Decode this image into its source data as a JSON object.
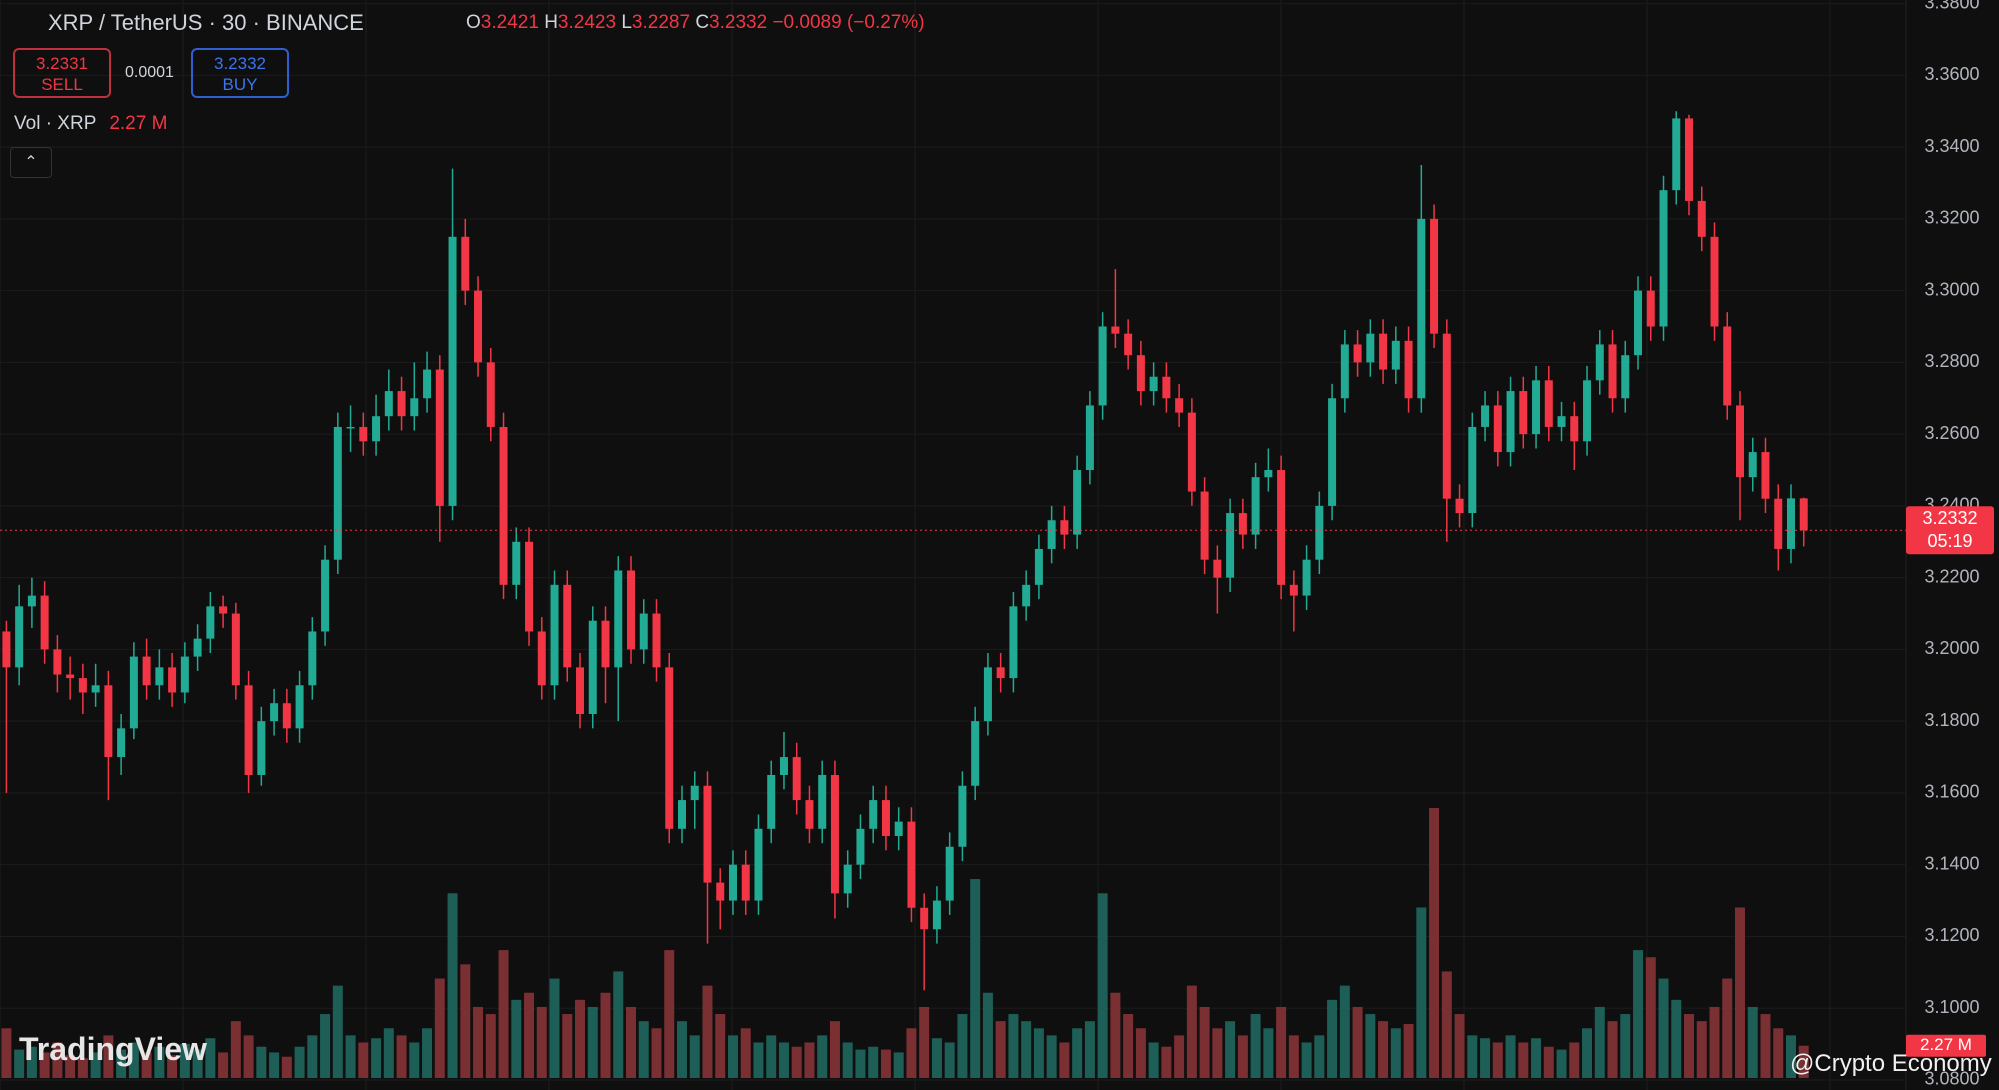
{
  "chart_data": {
    "type": "candlestick",
    "symbol": "XRP / TetherUS · 30 · BINANCE",
    "ohlc_labels": [
      "O",
      "H",
      "L",
      "C"
    ],
    "change": {
      "value": -0.0089,
      "label": "−0.0089"
    },
    "change_pct": {
      "value": -0.27,
      "label": "(−0.27%)"
    },
    "bid": 3.2331,
    "ask": 3.2332,
    "spread": 0.0001,
    "sell_label": "SELL",
    "buy_label": "BUY",
    "volume_title": "Vol · XRP",
    "last_volume_label": "2.27 M",
    "countdown": "05:19",
    "watermark": "TradingView",
    "credit": "@Crypto Economy",
    "up_color": "#22ab94",
    "down_color": "#f23645",
    "volume_up_color": "#1d5e57",
    "volume_down_color": "#7a2f33",
    "grid": true,
    "ylim": [
      3.0772,
      3.381
    ],
    "yticks": [
      {
        "value": 3.08,
        "label": "3.0800"
      },
      {
        "value": 3.1,
        "label": "3.1000"
      },
      {
        "value": 3.12,
        "label": "3.1200"
      },
      {
        "value": 3.14,
        "label": "3.1400"
      },
      {
        "value": 3.16,
        "label": "3.1600"
      },
      {
        "value": 3.18,
        "label": "3.1800"
      },
      {
        "value": 3.2,
        "label": "3.2000"
      },
      {
        "value": 3.22,
        "label": "3.2200"
      },
      {
        "value": 3.24,
        "label": "3.2400"
      },
      {
        "value": 3.26,
        "label": "3.2600"
      },
      {
        "value": 3.28,
        "label": "3.2800"
      },
      {
        "value": 3.3,
        "label": "3.3000"
      },
      {
        "value": 3.32,
        "label": "3.3200"
      },
      {
        "value": 3.34,
        "label": "3.3400"
      },
      {
        "value": 3.36,
        "label": "3.3600"
      },
      {
        "value": 3.38,
        "label": "3.3800"
      }
    ],
    "candles": [
      [
        3.205,
        3.208,
        3.16,
        3.195
      ],
      [
        3.195,
        3.218,
        3.19,
        3.212
      ],
      [
        3.212,
        3.22,
        3.206,
        3.215
      ],
      [
        3.215,
        3.219,
        3.196,
        3.2
      ],
      [
        3.2,
        3.204,
        3.188,
        3.193
      ],
      [
        3.193,
        3.198,
        3.186,
        3.192
      ],
      [
        3.192,
        3.196,
        3.182,
        3.188
      ],
      [
        3.188,
        3.196,
        3.184,
        3.19
      ],
      [
        3.19,
        3.194,
        3.158,
        3.17
      ],
      [
        3.17,
        3.182,
        3.165,
        3.178
      ],
      [
        3.178,
        3.202,
        3.175,
        3.198
      ],
      [
        3.198,
        3.203,
        3.186,
        3.19
      ],
      [
        3.19,
        3.2,
        3.186,
        3.195
      ],
      [
        3.195,
        3.199,
        3.184,
        3.188
      ],
      [
        3.188,
        3.202,
        3.185,
        3.198
      ],
      [
        3.198,
        3.207,
        3.194,
        3.203
      ],
      [
        3.203,
        3.216,
        3.199,
        3.212
      ],
      [
        3.212,
        3.215,
        3.206,
        3.21
      ],
      [
        3.21,
        3.213,
        3.186,
        3.19
      ],
      [
        3.19,
        3.194,
        3.16,
        3.165
      ],
      [
        3.165,
        3.184,
        3.162,
        3.18
      ],
      [
        3.18,
        3.189,
        3.176,
        3.185
      ],
      [
        3.185,
        3.189,
        3.174,
        3.178
      ],
      [
        3.178,
        3.194,
        3.174,
        3.19
      ],
      [
        3.19,
        3.209,
        3.186,
        3.205
      ],
      [
        3.205,
        3.229,
        3.201,
        3.225
      ],
      [
        3.225,
        3.266,
        3.221,
        3.262
      ],
      [
        3.262,
        3.268,
        3.255,
        3.262
      ],
      [
        3.262,
        3.266,
        3.254,
        3.258
      ],
      [
        3.258,
        3.271,
        3.254,
        3.265
      ],
      [
        3.265,
        3.278,
        3.261,
        3.272
      ],
      [
        3.272,
        3.276,
        3.261,
        3.265
      ],
      [
        3.265,
        3.28,
        3.261,
        3.27
      ],
      [
        3.27,
        3.283,
        3.266,
        3.278
      ],
      [
        3.278,
        3.282,
        3.23,
        3.24
      ],
      [
        3.24,
        3.334,
        3.236,
        3.315
      ],
      [
        3.315,
        3.32,
        3.296,
        3.3
      ],
      [
        3.3,
        3.304,
        3.276,
        3.28
      ],
      [
        3.28,
        3.284,
        3.258,
        3.262
      ],
      [
        3.262,
        3.266,
        3.214,
        3.218
      ],
      [
        3.218,
        3.234,
        3.214,
        3.23
      ],
      [
        3.23,
        3.234,
        3.201,
        3.205
      ],
      [
        3.205,
        3.209,
        3.186,
        3.19
      ],
      [
        3.19,
        3.222,
        3.186,
        3.218
      ],
      [
        3.218,
        3.222,
        3.191,
        3.195
      ],
      [
        3.195,
        3.199,
        3.178,
        3.182
      ],
      [
        3.182,
        3.212,
        3.178,
        3.208
      ],
      [
        3.208,
        3.212,
        3.185,
        3.195
      ],
      [
        3.195,
        3.226,
        3.18,
        3.222
      ],
      [
        3.222,
        3.226,
        3.196,
        3.2
      ],
      [
        3.2,
        3.214,
        3.196,
        3.21
      ],
      [
        3.21,
        3.214,
        3.191,
        3.195
      ],
      [
        3.195,
        3.199,
        3.146,
        3.15
      ],
      [
        3.15,
        3.162,
        3.146,
        3.158
      ],
      [
        3.158,
        3.166,
        3.15,
        3.162
      ],
      [
        3.162,
        3.166,
        3.118,
        3.135
      ],
      [
        3.135,
        3.139,
        3.122,
        3.13
      ],
      [
        3.13,
        3.144,
        3.126,
        3.14
      ],
      [
        3.14,
        3.144,
        3.126,
        3.13
      ],
      [
        3.13,
        3.154,
        3.126,
        3.15
      ],
      [
        3.15,
        3.169,
        3.146,
        3.165
      ],
      [
        3.165,
        3.177,
        3.161,
        3.17
      ],
      [
        3.17,
        3.174,
        3.154,
        3.158
      ],
      [
        3.158,
        3.162,
        3.146,
        3.15
      ],
      [
        3.15,
        3.169,
        3.146,
        3.165
      ],
      [
        3.165,
        3.169,
        3.125,
        3.132
      ],
      [
        3.132,
        3.144,
        3.128,
        3.14
      ],
      [
        3.14,
        3.154,
        3.136,
        3.15
      ],
      [
        3.15,
        3.162,
        3.146,
        3.158
      ],
      [
        3.158,
        3.162,
        3.144,
        3.148
      ],
      [
        3.148,
        3.156,
        3.144,
        3.152
      ],
      [
        3.152,
        3.156,
        3.124,
        3.128
      ],
      [
        3.128,
        3.132,
        3.105,
        3.122
      ],
      [
        3.122,
        3.134,
        3.118,
        3.13
      ],
      [
        3.13,
        3.149,
        3.126,
        3.145
      ],
      [
        3.145,
        3.166,
        3.141,
        3.162
      ],
      [
        3.162,
        3.184,
        3.158,
        3.18
      ],
      [
        3.18,
        3.199,
        3.176,
        3.195
      ],
      [
        3.195,
        3.199,
        3.188,
        3.192
      ],
      [
        3.192,
        3.216,
        3.188,
        3.212
      ],
      [
        3.212,
        3.222,
        3.208,
        3.218
      ],
      [
        3.218,
        3.232,
        3.214,
        3.228
      ],
      [
        3.228,
        3.24,
        3.224,
        3.236
      ],
      [
        3.236,
        3.24,
        3.228,
        3.232
      ],
      [
        3.232,
        3.254,
        3.228,
        3.25
      ],
      [
        3.25,
        3.272,
        3.246,
        3.268
      ],
      [
        3.268,
        3.294,
        3.264,
        3.29
      ],
      [
        3.29,
        3.306,
        3.284,
        3.288
      ],
      [
        3.288,
        3.292,
        3.278,
        3.282
      ],
      [
        3.282,
        3.286,
        3.268,
        3.272
      ],
      [
        3.272,
        3.28,
        3.268,
        3.276
      ],
      [
        3.276,
        3.28,
        3.266,
        3.27
      ],
      [
        3.27,
        3.274,
        3.262,
        3.266
      ],
      [
        3.266,
        3.27,
        3.24,
        3.244
      ],
      [
        3.244,
        3.248,
        3.221,
        3.225
      ],
      [
        3.225,
        3.229,
        3.21,
        3.22
      ],
      [
        3.22,
        3.242,
        3.216,
        3.238
      ],
      [
        3.238,
        3.242,
        3.228,
        3.232
      ],
      [
        3.232,
        3.252,
        3.228,
        3.248
      ],
      [
        3.248,
        3.256,
        3.244,
        3.25
      ],
      [
        3.25,
        3.254,
        3.214,
        3.218
      ],
      [
        3.218,
        3.222,
        3.205,
        3.215
      ],
      [
        3.215,
        3.229,
        3.211,
        3.225
      ],
      [
        3.225,
        3.244,
        3.221,
        3.24
      ],
      [
        3.24,
        3.274,
        3.236,
        3.27
      ],
      [
        3.27,
        3.289,
        3.266,
        3.285
      ],
      [
        3.285,
        3.289,
        3.276,
        3.28
      ],
      [
        3.28,
        3.292,
        3.276,
        3.288
      ],
      [
        3.288,
        3.292,
        3.274,
        3.278
      ],
      [
        3.278,
        3.29,
        3.274,
        3.286
      ],
      [
        3.286,
        3.29,
        3.266,
        3.27
      ],
      [
        3.27,
        3.335,
        3.266,
        3.32
      ],
      [
        3.32,
        3.324,
        3.284,
        3.288
      ],
      [
        3.288,
        3.292,
        3.23,
        3.242
      ],
      [
        3.242,
        3.246,
        3.234,
        3.238
      ],
      [
        3.238,
        3.266,
        3.234,
        3.262
      ],
      [
        3.262,
        3.272,
        3.258,
        3.268
      ],
      [
        3.268,
        3.272,
        3.251,
        3.255
      ],
      [
        3.255,
        3.276,
        3.251,
        3.272
      ],
      [
        3.272,
        3.276,
        3.256,
        3.26
      ],
      [
        3.26,
        3.279,
        3.256,
        3.275
      ],
      [
        3.275,
        3.279,
        3.258,
        3.262
      ],
      [
        3.262,
        3.269,
        3.258,
        3.265
      ],
      [
        3.265,
        3.269,
        3.25,
        3.258
      ],
      [
        3.258,
        3.279,
        3.254,
        3.275
      ],
      [
        3.275,
        3.289,
        3.271,
        3.285
      ],
      [
        3.285,
        3.289,
        3.266,
        3.27
      ],
      [
        3.27,
        3.286,
        3.266,
        3.282
      ],
      [
        3.282,
        3.304,
        3.278,
        3.3
      ],
      [
        3.3,
        3.304,
        3.286,
        3.29
      ],
      [
        3.29,
        3.332,
        3.286,
        3.328
      ],
      [
        3.328,
        3.35,
        3.324,
        3.348
      ],
      [
        3.348,
        3.349,
        3.321,
        3.325
      ],
      [
        3.325,
        3.329,
        3.311,
        3.315
      ],
      [
        3.315,
        3.319,
        3.286,
        3.29
      ],
      [
        3.29,
        3.294,
        3.264,
        3.268
      ],
      [
        3.268,
        3.272,
        3.236,
        3.248
      ],
      [
        3.248,
        3.259,
        3.244,
        3.255
      ],
      [
        3.255,
        3.259,
        3.238,
        3.242
      ],
      [
        3.242,
        3.246,
        3.222,
        3.228
      ],
      [
        3.228,
        3.246,
        3.224,
        3.2421
      ],
      [
        3.2421,
        3.2423,
        3.2287,
        3.2332
      ]
    ],
    "volumes": [
      3.5,
      2.0,
      2.2,
      1.8,
      2.5,
      1.6,
      1.4,
      1.8,
      3.0,
      2.0,
      2.5,
      1.8,
      2.2,
      1.6,
      2.4,
      2.0,
      2.8,
      1.8,
      4.0,
      3.0,
      2.2,
      1.8,
      1.5,
      2.2,
      3.0,
      4.5,
      6.5,
      3.0,
      2.5,
      2.8,
      3.5,
      3.0,
      2.5,
      3.5,
      7.0,
      13.0,
      8.0,
      5.0,
      4.5,
      9.0,
      5.5,
      6.0,
      5.0,
      7.0,
      4.5,
      5.5,
      5.0,
      6.0,
      7.5,
      5.0,
      4.0,
      3.5,
      9.0,
      4.0,
      3.0,
      6.5,
      4.5,
      3.0,
      3.5,
      2.5,
      3.0,
      2.5,
      2.2,
      2.5,
      3.0,
      4.0,
      2.5,
      2.0,
      2.2,
      2.0,
      1.8,
      3.5,
      5.0,
      2.8,
      2.5,
      4.5,
      14.0,
      6.0,
      4.0,
      4.5,
      4.0,
      3.5,
      3.0,
      2.5,
      3.5,
      4.0,
      13.0,
      6.0,
      4.5,
      3.5,
      2.5,
      2.2,
      3.0,
      6.5,
      5.0,
      3.5,
      4.0,
      3.0,
      4.5,
      3.5,
      5.0,
      3.0,
      2.5,
      3.0,
      5.5,
      6.5,
      5.0,
      4.5,
      4.0,
      3.5,
      3.8,
      12.0,
      19.0,
      7.5,
      4.5,
      3.0,
      2.8,
      2.5,
      3.0,
      2.5,
      2.8,
      2.2,
      2.0,
      2.5,
      3.5,
      5.0,
      4.0,
      4.5,
      9.0,
      8.5,
      7.0,
      5.5,
      4.5,
      4.0,
      5.0,
      7.0,
      12.0,
      5.0,
      4.5,
      3.5,
      3.0,
      2.27
    ]
  }
}
